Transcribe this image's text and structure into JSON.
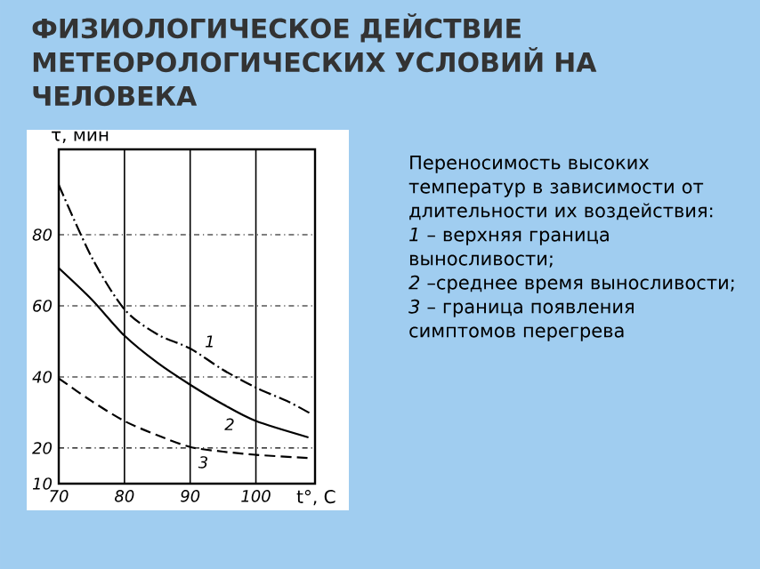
{
  "chart_data": {
    "type": "line",
    "title": "ФИЗИОЛОГИЧЕСКОЕ ДЕЙСТВИЕ МЕТЕОРОЛОГИЧЕСКИХ УСЛОВИЙ НА ЧЕЛОВЕКА",
    "xlabel": "t°, C",
    "ylabel": "τ, мин",
    "xlim": [
      70,
      109
    ],
    "xticks": [
      70,
      80,
      90,
      100
    ],
    "ylim": [
      10,
      104
    ],
    "yticks": [
      10,
      20,
      40,
      60,
      80
    ],
    "grid": true,
    "series": [
      {
        "color": "#000000",
        "line_style": "dashdot",
        "x": [
          70,
          75,
          80,
          85,
          90,
          95,
          100,
          105,
          108.5
        ],
        "values": [
          94,
          73.7,
          59,
          52,
          48,
          42,
          37,
          33,
          29.5
        ]
      },
      {
        "color": "#000000",
        "line_style": "solid",
        "x": [
          70,
          75,
          80,
          85,
          90,
          95,
          100,
          108
        ],
        "values": [
          70.6,
          61.8,
          51.6,
          44,
          37.8,
          32.3,
          27.6,
          23
        ]
      },
      {
        "color": "#000000",
        "line_style": "dashed",
        "x": [
          70,
          75,
          80,
          85,
          90,
          95,
          100,
          108
        ],
        "values": [
          39.6,
          33.2,
          27.6,
          23.6,
          20.3,
          19,
          18.1,
          17.2
        ]
      }
    ],
    "annotations": [
      {
        "text": "1",
        "x": 93,
        "y": 50
      },
      {
        "text": "2",
        "x": 96,
        "y": 26.7
      },
      {
        "text": "3",
        "x": 92,
        "y": 16
      },
      "Переносимость высоких температур в зависимости от длительности их воздействия:",
      "*1* – верхняя граница выносливости;",
      "*2* –среднее время выносливости;",
      "*3* – граница появления симптомов перегрева"
    ]
  }
}
